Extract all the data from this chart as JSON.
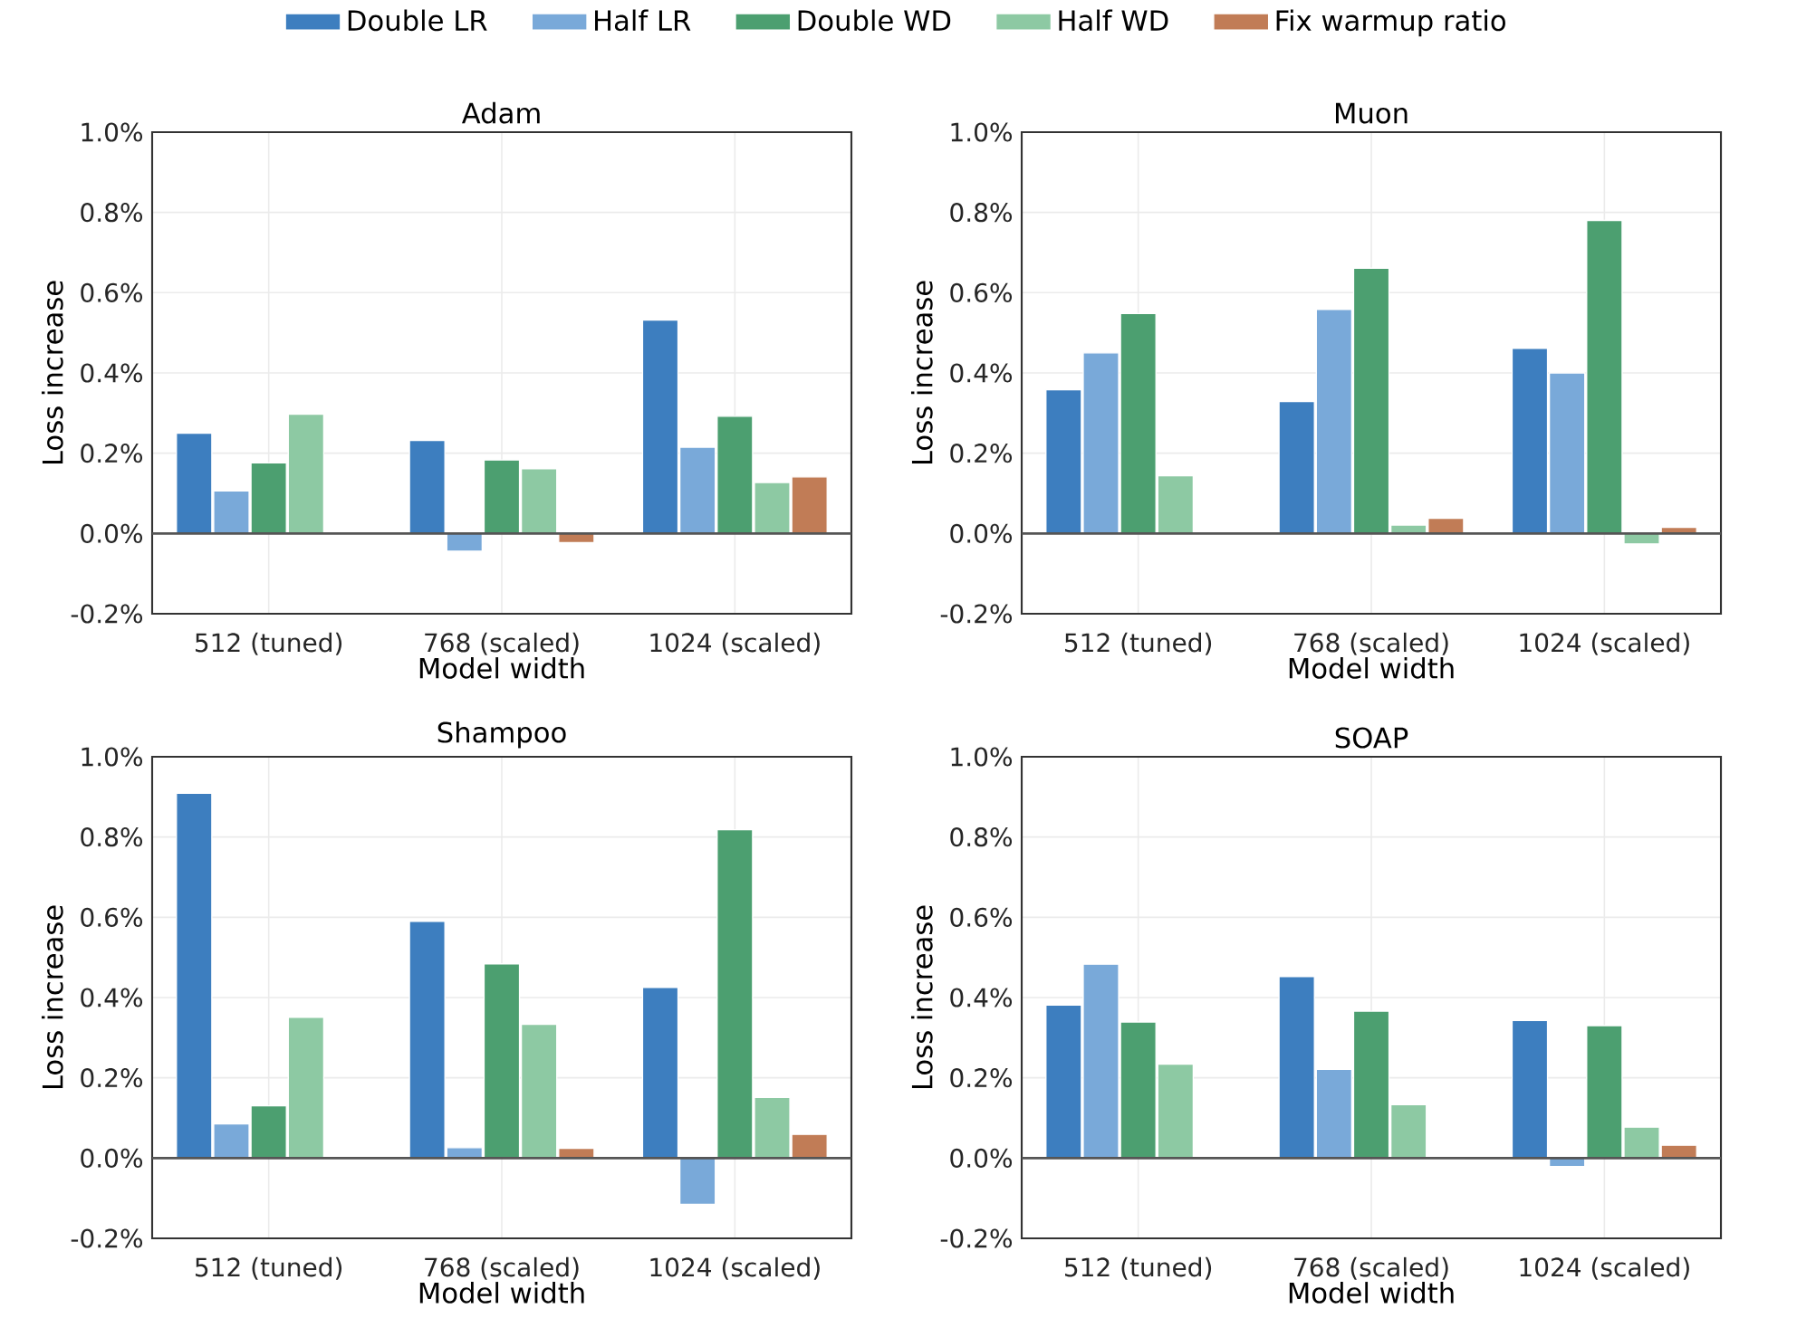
{
  "chart_data": [
    {
      "type": "bar",
      "title": "Adam",
      "xlabel": "Model width",
      "ylabel": "Loss increase",
      "categories": [
        "512 (tuned)",
        "768 (scaled)",
        "1024 (scaled)"
      ],
      "series": [
        {
          "name": "Double LR",
          "color": "#3d7ebf",
          "values": [
            0.25,
            0.232,
            0.532
          ]
        },
        {
          "name": "Half LR",
          "color": "#79a9d9",
          "values": [
            0.106,
            -0.044,
            0.215
          ]
        },
        {
          "name": "Double WD",
          "color": "#4c9f70",
          "values": [
            0.176,
            0.183,
            0.292
          ]
        },
        {
          "name": "Half WD",
          "color": "#8dc9a3",
          "values": [
            0.297,
            0.161,
            0.127
          ]
        },
        {
          "name": "Fix warmup ratio",
          "color": "#c17c56",
          "values": [
            null,
            -0.023,
            0.141
          ]
        }
      ],
      "ylim": [
        -0.2,
        1.0
      ],
      "yticks": [
        {
          "value": -0.2,
          "label": "-0.2%"
        },
        {
          "value": 0.0,
          "label": "0.0%"
        },
        {
          "value": 0.2,
          "label": "0.2%"
        },
        {
          "value": 0.4,
          "label": "0.4%"
        },
        {
          "value": 0.6,
          "label": "0.6%"
        },
        {
          "value": 0.8,
          "label": "0.8%"
        },
        {
          "value": 1.0,
          "label": "1.0%"
        }
      ],
      "grid": true,
      "legend": "top",
      "ref_lines": [
        {
          "axis": "y",
          "value": 0,
          "color": "#555555"
        }
      ]
    },
    {
      "type": "bar",
      "title": "Muon",
      "xlabel": "Model width",
      "ylabel": "Loss increase",
      "categories": [
        "512 (tuned)",
        "768 (scaled)",
        "1024 (scaled)"
      ],
      "series": [
        {
          "color": "#3d7ebf",
          "values": [
            0.358,
            0.329,
            0.461
          ]
        },
        {
          "color": "#79a9d9",
          "values": [
            0.45,
            0.558,
            0.4
          ]
        },
        {
          "color": "#4c9f70",
          "values": [
            0.548,
            0.661,
            0.78
          ]
        },
        {
          "color": "#8dc9a3",
          "values": [
            0.144,
            0.021,
            -0.026
          ]
        },
        {
          "color": "#c17c56",
          "values": [
            null,
            0.038,
            0.015
          ]
        }
      ],
      "ylim": [
        -0.2,
        1.0
      ],
      "yticks": [
        {
          "value": -0.2,
          "label": "-0.2%"
        },
        {
          "value": 0.0,
          "label": "0.0%"
        },
        {
          "value": 0.2,
          "label": "0.2%"
        },
        {
          "value": 0.4,
          "label": "0.4%"
        },
        {
          "value": 0.6,
          "label": "0.6%"
        },
        {
          "value": 0.8,
          "label": "0.8%"
        },
        {
          "value": 1.0,
          "label": "1.0%"
        }
      ],
      "grid": true,
      "ref_lines": [
        {
          "axis": "y",
          "value": 0,
          "color": "#555555"
        }
      ]
    },
    {
      "type": "bar",
      "title": "Shampoo",
      "xlabel": "Model width",
      "ylabel": "Loss increase",
      "categories": [
        "512 (tuned)",
        "768 (scaled)",
        "1024 (scaled)"
      ],
      "series": [
        {
          "color": "#3d7ebf",
          "values": [
            0.909,
            0.59,
            0.425
          ]
        },
        {
          "color": "#79a9d9",
          "values": [
            0.085,
            0.026,
            -0.115
          ]
        },
        {
          "color": "#4c9f70",
          "values": [
            0.13,
            0.484,
            0.818
          ]
        },
        {
          "color": "#8dc9a3",
          "values": [
            0.351,
            0.333,
            0.151
          ]
        },
        {
          "color": "#c17c56",
          "values": [
            null,
            0.024,
            0.059
          ]
        }
      ],
      "ylim": [
        -0.2,
        1.0
      ],
      "yticks": [
        {
          "value": -0.2,
          "label": "-0.2%"
        },
        {
          "value": 0.0,
          "label": "0.0%"
        },
        {
          "value": 0.2,
          "label": "0.2%"
        },
        {
          "value": 0.4,
          "label": "0.4%"
        },
        {
          "value": 0.6,
          "label": "0.6%"
        },
        {
          "value": 0.8,
          "label": "0.8%"
        },
        {
          "value": 1.0,
          "label": "1.0%"
        }
      ],
      "grid": true,
      "ref_lines": [
        {
          "axis": "y",
          "value": 0,
          "color": "#555555"
        }
      ]
    },
    {
      "type": "bar",
      "title": "SOAP",
      "xlabel": "Model width",
      "ylabel": "Loss increase",
      "categories": [
        "512 (tuned)",
        "768 (scaled)",
        "1024 (scaled)"
      ],
      "series": [
        {
          "color": "#3d7ebf",
          "values": [
            0.381,
            0.452,
            0.343
          ]
        },
        {
          "color": "#79a9d9",
          "values": [
            0.483,
            0.221,
            -0.021
          ]
        },
        {
          "color": "#4c9f70",
          "values": [
            0.339,
            0.366,
            0.33
          ]
        },
        {
          "color": "#8dc9a3",
          "values": [
            0.234,
            0.133,
            0.077
          ]
        },
        {
          "color": "#c17c56",
          "values": [
            null,
            -0.003,
            0.032
          ]
        }
      ],
      "ylim": [
        -0.2,
        1.0
      ],
      "yticks": [
        {
          "value": -0.2,
          "label": "-0.2%"
        },
        {
          "value": 0.0,
          "label": "0.0%"
        },
        {
          "value": 0.2,
          "label": "0.2%"
        },
        {
          "value": 0.4,
          "label": "0.4%"
        },
        {
          "value": 0.6,
          "label": "0.6%"
        },
        {
          "value": 0.8,
          "label": "0.8%"
        },
        {
          "value": 1.0,
          "label": "1.0%"
        }
      ],
      "grid": true,
      "ref_lines": [
        {
          "axis": "y",
          "value": 0,
          "color": "#555555"
        }
      ]
    }
  ]
}
